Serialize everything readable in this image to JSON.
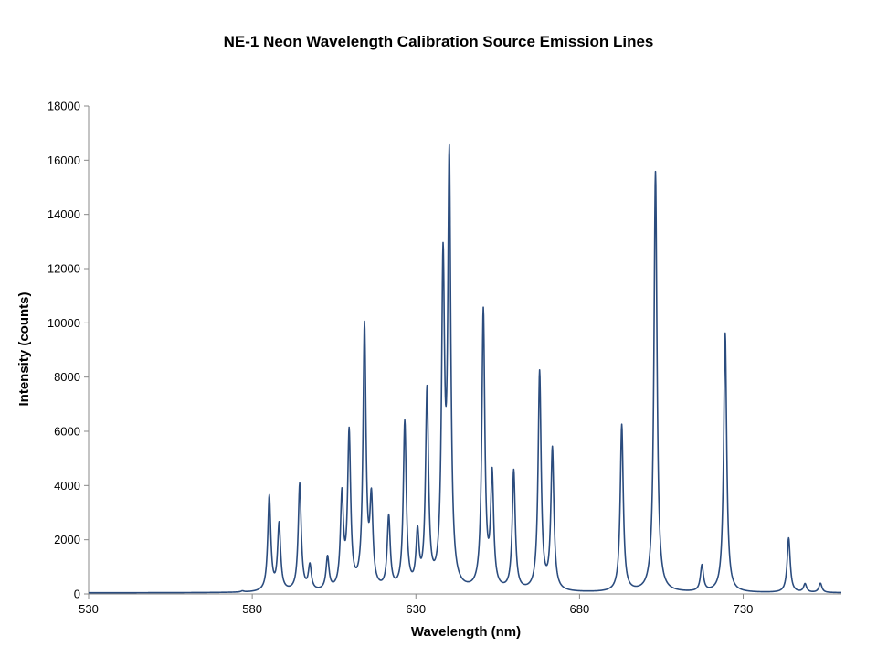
{
  "chart_data": {
    "type": "line",
    "title": "NE-1 Neon Wavelength Calibration Source Emission Lines",
    "xlabel": "Wavelength (nm)",
    "ylabel": "Intensity (counts)",
    "xlim": [
      530,
      760
    ],
    "ylim": [
      0,
      18000
    ],
    "xticks": [
      530,
      580,
      630,
      680,
      730
    ],
    "yticks": [
      0,
      2000,
      4000,
      6000,
      8000,
      10000,
      12000,
      14000,
      16000,
      18000
    ],
    "grid": false,
    "legend": "none",
    "line_color": "#2b4c7e",
    "baseline": 40,
    "peaks": [
      {
        "x": 577.0,
        "y": 80
      },
      {
        "x": 585.2,
        "y": 3550
      },
      {
        "x": 588.2,
        "y": 2500
      },
      {
        "x": 594.5,
        "y": 4000
      },
      {
        "x": 597.6,
        "y": 950
      },
      {
        "x": 603.0,
        "y": 1250
      },
      {
        "x": 607.4,
        "y": 3450
      },
      {
        "x": 609.6,
        "y": 5750
      },
      {
        "x": 614.3,
        "y": 9700
      },
      {
        "x": 616.4,
        "y": 3150
      },
      {
        "x": 621.7,
        "y": 2700
      },
      {
        "x": 626.6,
        "y": 6200
      },
      {
        "x": 630.5,
        "y": 2000
      },
      {
        "x": 633.4,
        "y": 7300
      },
      {
        "x": 638.3,
        "y": 11600
      },
      {
        "x": 640.2,
        "y": 15550
      },
      {
        "x": 650.6,
        "y": 10300
      },
      {
        "x": 653.3,
        "y": 4150
      },
      {
        "x": 659.9,
        "y": 4450
      },
      {
        "x": 667.8,
        "y": 8100
      },
      {
        "x": 671.7,
        "y": 5250
      },
      {
        "x": 692.9,
        "y": 6200
      },
      {
        "x": 703.2,
        "y": 15550
      },
      {
        "x": 717.4,
        "y": 1000
      },
      {
        "x": 724.5,
        "y": 9600
      },
      {
        "x": 743.9,
        "y": 2050
      },
      {
        "x": 748.9,
        "y": 350
      },
      {
        "x": 753.6,
        "y": 380
      }
    ]
  }
}
